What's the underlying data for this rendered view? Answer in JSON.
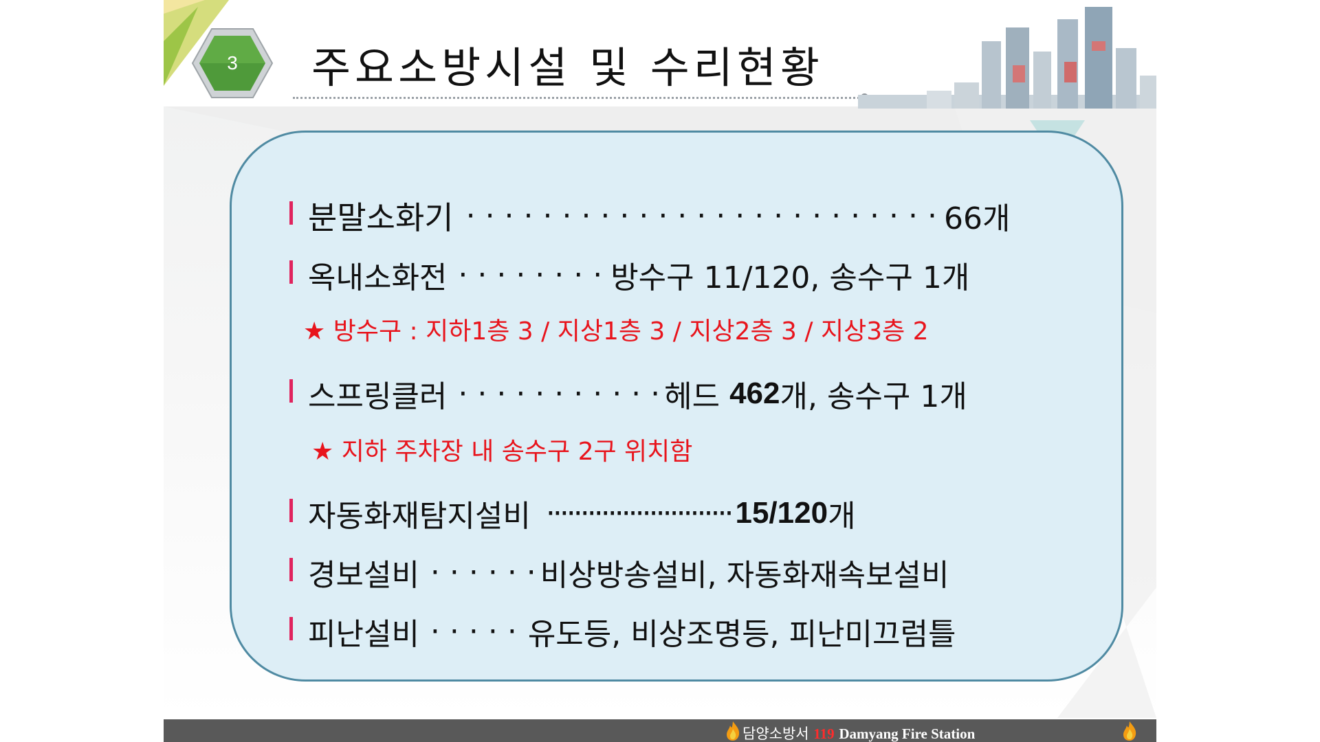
{
  "header": {
    "section_number": "3",
    "title": "주요소방시설 및 수리현황"
  },
  "items": [
    {
      "name": "분말소화기",
      "dots": "· · · · · · · · · · · · · · · · · · · ·  · · · · ·",
      "value": "66개"
    },
    {
      "name": "옥내소화전",
      "dots": "· · · · · · · ·",
      "value": "방수구 11/120, 송수구 1개"
    },
    {
      "name": "스프링클러",
      "dots": "· · · · · · · · · · ·",
      "value_prefix": "헤드 ",
      "value_bold": "462",
      "value_suffix": "개, 송수구 1개"
    },
    {
      "name": "자동화재탐지설비",
      "dots": "···························",
      "value_bold": "15/120",
      "value_suffix": "개"
    },
    {
      "name": "경보설비",
      "dots": "· · · · · ·",
      "value": "비상방송설비, 자동화재속보설비"
    },
    {
      "name": "피난설비",
      "dots": "· · · · ·",
      "value": "유도등, 비상조명등, 피난미끄럼틀"
    }
  ],
  "notes": [
    "★ 방수구 : 지하1층 3 / 지상1층 3 / 지상2층 3 / 지상3층 2",
    "★ 지하 주차장 내 송수구 2구 위치함"
  ],
  "footer": {
    "station_kr": "담양소방서",
    "number": "119",
    "station_en": "Damyang Fire Station"
  },
  "colors": {
    "accent_bar": "#e0245e",
    "note_red": "#e8141c",
    "panel_fill": "#ddeef6",
    "panel_border": "#4f8aa2",
    "badge_green": "#4f9a3a",
    "footer_bg": "#595959"
  }
}
